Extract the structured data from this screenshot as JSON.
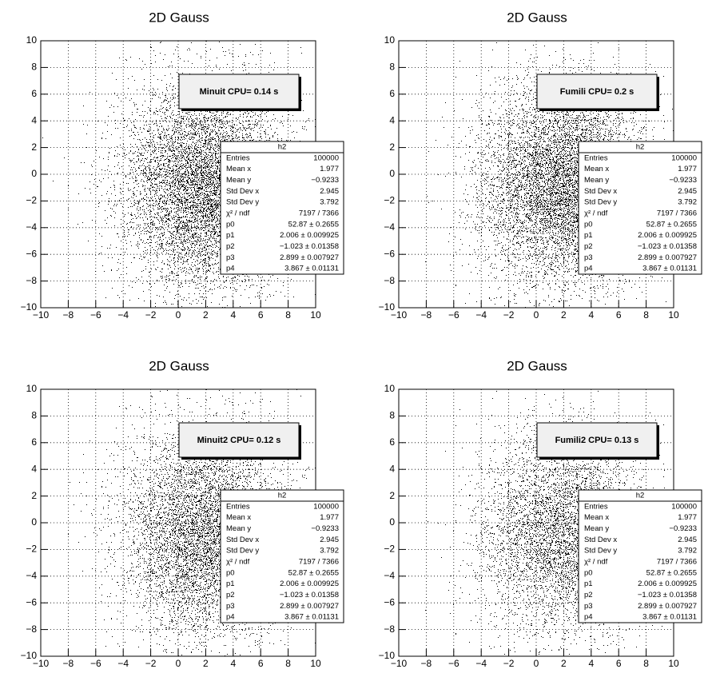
{
  "chart_data": [
    {
      "type": "hist2d",
      "title": "2D Gauss",
      "annotation": "Minuit CPU= 0.14 s",
      "xlim": [
        -10,
        10
      ],
      "ylim": [
        -10,
        10
      ],
      "xticks": [
        {
          "value": -10,
          "label": "−10"
        },
        {
          "value": -8,
          "label": "−8"
        },
        {
          "value": -6,
          "label": "−6"
        },
        {
          "value": -4,
          "label": "−4"
        },
        {
          "value": -2,
          "label": "−2"
        },
        0,
        2,
        4,
        6,
        8,
        10
      ],
      "yticks": [
        {
          "value": -10,
          "label": "−10"
        },
        {
          "value": -8,
          "label": "−8"
        },
        {
          "value": -6,
          "label": "−6"
        },
        {
          "value": -4,
          "label": "−4"
        },
        {
          "value": -2,
          "label": "−2"
        },
        0,
        2,
        4,
        6,
        8,
        10
      ],
      "grid": true,
      "color": "#000000",
      "stats": {
        "title": "h2",
        "rows": [
          {
            "label": "Entries",
            "value": 100000
          },
          {
            "label": "Mean x",
            "value": 1.977
          },
          {
            "label": "Mean y",
            "value": {
              "value": -0.9233,
              "label": "−0.9233"
            }
          },
          {
            "label": "Std Dev x",
            "value": 2.945
          },
          {
            "label": "Std Dev y",
            "value": 3.792
          },
          {
            "label": "χ² / ndf",
            "value": "7197 / 7366"
          },
          {
            "label": "p0",
            "value": "52.87 ± 0.2655"
          },
          {
            "label": "p1",
            "value": "2.006 ± 0.009925"
          },
          {
            "label": "p2",
            "value": "−1.023 ± 0.01358"
          },
          {
            "label": "p3",
            "value": "2.899 ± 0.007927"
          },
          {
            "label": "p4",
            "value": "3.867 ± 0.01131"
          }
        ]
      }
    },
    {
      "type": "hist2d",
      "title": "2D Gauss",
      "annotation": "Fumili CPU= 0.2 s",
      "xlim": [
        -10,
        10
      ],
      "ylim": [
        -10,
        10
      ],
      "xticks": [
        {
          "value": -10,
          "label": "−10"
        },
        {
          "value": -8,
          "label": "−8"
        },
        {
          "value": -6,
          "label": "−6"
        },
        {
          "value": -4,
          "label": "−4"
        },
        {
          "value": -2,
          "label": "−2"
        },
        0,
        2,
        4,
        6,
        8,
        10
      ],
      "yticks": [
        {
          "value": -10,
          "label": "−10"
        },
        {
          "value": -8,
          "label": "−8"
        },
        {
          "value": -6,
          "label": "−6"
        },
        {
          "value": -4,
          "label": "−4"
        },
        {
          "value": -2,
          "label": "−2"
        },
        0,
        2,
        4,
        6,
        8,
        10
      ],
      "grid": true,
      "color": "#000000",
      "stats": {
        "title": "h2",
        "rows": [
          {
            "label": "Entries",
            "value": 100000
          },
          {
            "label": "Mean x",
            "value": 1.977
          },
          {
            "label": "Mean y",
            "value": {
              "value": -0.9233,
              "label": "−0.9233"
            }
          },
          {
            "label": "Std Dev x",
            "value": 2.945
          },
          {
            "label": "Std Dev y",
            "value": 3.792
          },
          {
            "label": "χ² / ndf",
            "value": "7197 / 7366"
          },
          {
            "label": "p0",
            "value": "52.87 ± 0.2655"
          },
          {
            "label": "p1",
            "value": "2.006 ± 0.009925"
          },
          {
            "label": "p2",
            "value": "−1.023 ± 0.01358"
          },
          {
            "label": "p3",
            "value": "2.899 ± 0.007927"
          },
          {
            "label": "p4",
            "value": "3.867 ± 0.01131"
          }
        ]
      }
    },
    {
      "type": "hist2d",
      "title": "2D Gauss",
      "annotation": "Minuit2 CPU= 0.12 s",
      "xlim": [
        -10,
        10
      ],
      "ylim": [
        -10,
        10
      ],
      "xticks": [
        {
          "value": -10,
          "label": "−10"
        },
        {
          "value": -8,
          "label": "−8"
        },
        {
          "value": -6,
          "label": "−6"
        },
        {
          "value": -4,
          "label": "−4"
        },
        {
          "value": -2,
          "label": "−2"
        },
        0,
        2,
        4,
        6,
        8,
        10
      ],
      "yticks": [
        {
          "value": -10,
          "label": "−10"
        },
        {
          "value": -8,
          "label": "−8"
        },
        {
          "value": -6,
          "label": "−6"
        },
        {
          "value": -4,
          "label": "−4"
        },
        {
          "value": -2,
          "label": "−2"
        },
        0,
        2,
        4,
        6,
        8,
        10
      ],
      "grid": true,
      "color": "#000000",
      "stats": {
        "title": "h2",
        "rows": [
          {
            "label": "Entries",
            "value": 100000
          },
          {
            "label": "Mean x",
            "value": 1.977
          },
          {
            "label": "Mean y",
            "value": {
              "value": -0.9233,
              "label": "−0.9233"
            }
          },
          {
            "label": "Std Dev x",
            "value": 2.945
          },
          {
            "label": "Std Dev y",
            "value": 3.792
          },
          {
            "label": "χ² / ndf",
            "value": "7197 / 7366"
          },
          {
            "label": "p0",
            "value": "52.87 ± 0.2655"
          },
          {
            "label": "p1",
            "value": "2.006 ± 0.009925"
          },
          {
            "label": "p2",
            "value": "−1.023 ± 0.01358"
          },
          {
            "label": "p3",
            "value": "2.899 ± 0.007927"
          },
          {
            "label": "p4",
            "value": "3.867 ± 0.01131"
          }
        ]
      }
    },
    {
      "type": "hist2d",
      "title": "2D Gauss",
      "annotation": "Fumili2 CPU= 0.13 s",
      "xlim": [
        -10,
        10
      ],
      "ylim": [
        -10,
        10
      ],
      "xticks": [
        {
          "value": -10,
          "label": "−10"
        },
        {
          "value": -8,
          "label": "−8"
        },
        {
          "value": -6,
          "label": "−6"
        },
        {
          "value": -4,
          "label": "−4"
        },
        {
          "value": -2,
          "label": "−2"
        },
        0,
        2,
        4,
        6,
        8,
        10
      ],
      "yticks": [
        {
          "value": -10,
          "label": "−10"
        },
        {
          "value": -8,
          "label": "−8"
        },
        {
          "value": -6,
          "label": "−6"
        },
        {
          "value": -4,
          "label": "−4"
        },
        {
          "value": -2,
          "label": "−2"
        },
        0,
        2,
        4,
        6,
        8,
        10
      ],
      "grid": true,
      "color": "#000000",
      "stats": {
        "title": "h2",
        "rows": [
          {
            "label": "Entries",
            "value": 100000
          },
          {
            "label": "Mean x",
            "value": 1.977
          },
          {
            "label": "Mean y",
            "value": {
              "value": -0.9233,
              "label": "−0.9233"
            }
          },
          {
            "label": "Std Dev x",
            "value": 2.945
          },
          {
            "label": "Std Dev y",
            "value": 3.792
          },
          {
            "label": "χ² / ndf",
            "value": "7197 / 7366"
          },
          {
            "label": "p0",
            "value": "52.87 ± 0.2655"
          },
          {
            "label": "p1",
            "value": "2.006 ± 0.009925"
          },
          {
            "label": "p2",
            "value": "−1.023 ± 0.01358"
          },
          {
            "label": "p3",
            "value": "2.899 ± 0.007927"
          },
          {
            "label": "p4",
            "value": "3.867 ± 0.01131"
          }
        ]
      }
    }
  ]
}
